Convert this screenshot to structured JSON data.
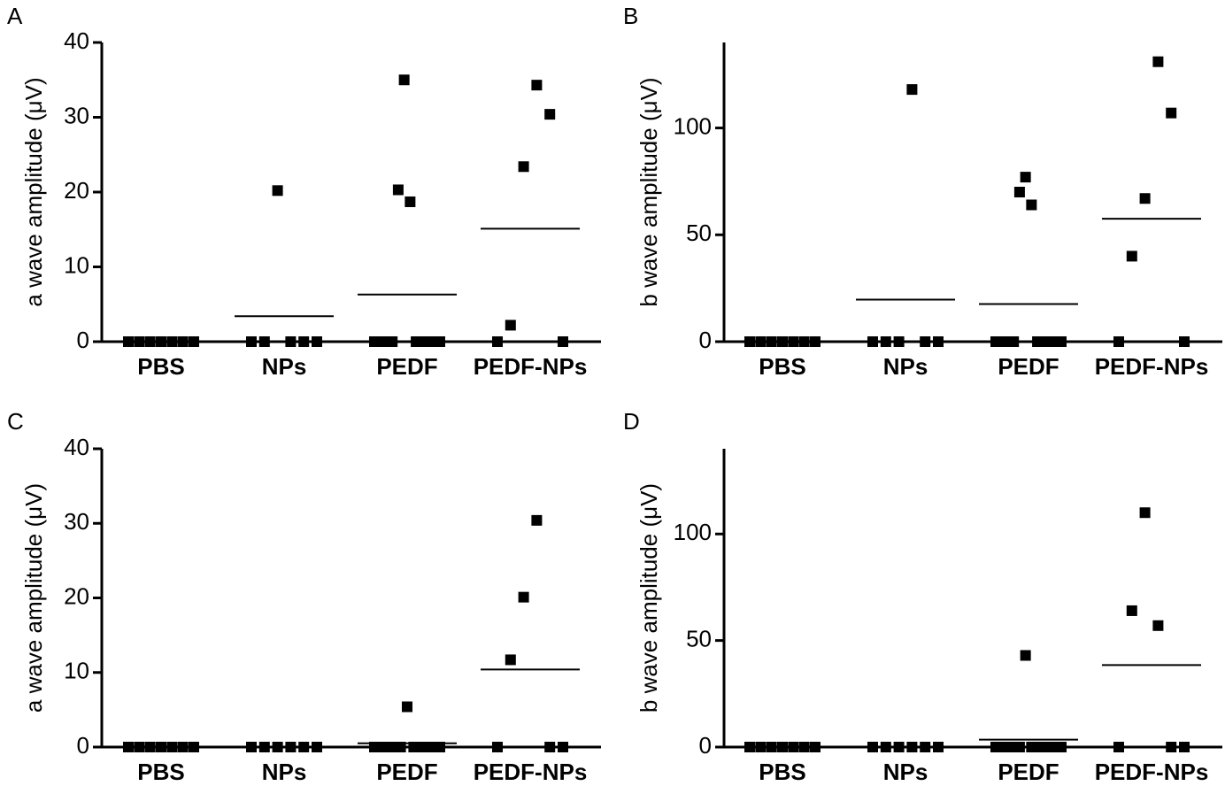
{
  "chart_data": [
    {
      "type": "dot",
      "panel_label": "A",
      "y_label": "a wave amplitude (μV)",
      "categories": [
        "PBS",
        "NPs",
        "PEDF",
        "PEDF-NPs"
      ],
      "groups": [
        [
          0,
          0,
          0,
          0,
          0,
          0,
          0
        ],
        [
          0,
          0,
          20.2,
          0,
          0,
          0
        ],
        [
          0,
          0,
          0,
          0,
          20.3,
          35,
          18.7,
          0,
          0,
          0,
          0,
          0
        ],
        [
          0,
          2.2,
          23.4,
          34.3,
          30.4,
          0
        ]
      ],
      "means": [
        0,
        3.4,
        6.3,
        15.1
      ],
      "ylim": [
        0,
        40
      ],
      "yticks": [
        0,
        10,
        20,
        30,
        40
      ],
      "color": "#000000"
    },
    {
      "type": "dot",
      "panel_label": "B",
      "y_label": "b wave amplitude (μV)",
      "categories": [
        "PBS",
        "NPs",
        "PEDF",
        "PEDF-NPs"
      ],
      "groups": [
        [
          0,
          0,
          0,
          0,
          0,
          0,
          0
        ],
        [
          0,
          0,
          0,
          118,
          0,
          0
        ],
        [
          0,
          0,
          0,
          0,
          70,
          77,
          64,
          0,
          0,
          0,
          0,
          0
        ],
        [
          0,
          40,
          67,
          131,
          107,
          0
        ]
      ],
      "means": [
        0,
        19.7,
        17.6,
        57.5
      ],
      "ylim": [
        0,
        140
      ],
      "yticks": [
        0,
        50,
        100
      ],
      "color": "#000000"
    },
    {
      "type": "dot",
      "panel_label": "C",
      "y_label": "a wave amplitude (μV)",
      "categories": [
        "PBS",
        "NPs",
        "PEDF",
        "PEDF-NPs"
      ],
      "groups": [
        [
          0,
          0,
          0,
          0,
          0,
          0,
          0
        ],
        [
          0,
          0,
          0,
          0,
          0,
          0
        ],
        [
          0,
          0,
          0,
          0,
          0,
          5.4,
          0,
          0,
          0,
          0,
          0
        ],
        [
          0,
          11.7,
          20.1,
          30.4,
          0,
          0
        ]
      ],
      "means": [
        0,
        0,
        0.5,
        10.4
      ],
      "ylim": [
        0,
        40
      ],
      "yticks": [
        0,
        10,
        20,
        30,
        40
      ],
      "color": "#000000"
    },
    {
      "type": "dot",
      "panel_label": "D",
      "y_label": "b wave amplitude (μV)",
      "categories": [
        "PBS",
        "NPs",
        "PEDF",
        "PEDF-NPs"
      ],
      "groups": [
        [
          0,
          0,
          0,
          0,
          0,
          0,
          0
        ],
        [
          0,
          0,
          0,
          0,
          0,
          0
        ],
        [
          0,
          0,
          0,
          0,
          0,
          43,
          0,
          0,
          0,
          0,
          0,
          0
        ],
        [
          0,
          64,
          110,
          57,
          0,
          0
        ]
      ],
      "means": [
        0,
        0,
        3.5,
        38.5
      ],
      "ylim": [
        0,
        140
      ],
      "yticks": [
        0,
        50,
        100
      ],
      "color": "#000000"
    }
  ]
}
